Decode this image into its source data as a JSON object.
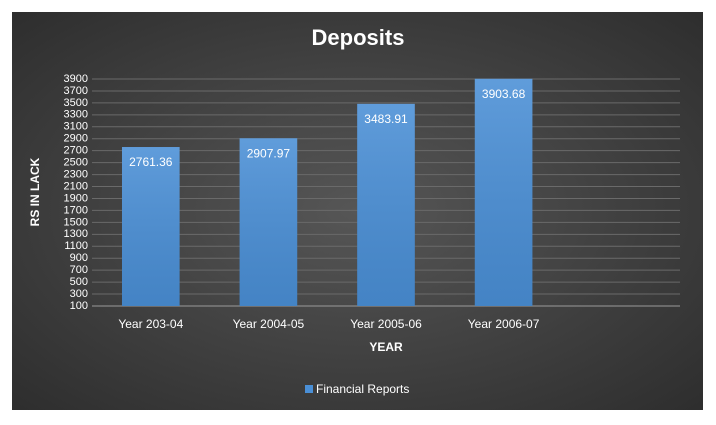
{
  "chart_data": {
    "type": "bar",
    "title": "Deposits",
    "x_label": "YEAR",
    "y_label": "RS IN LACK",
    "categories": [
      "Year 203-04",
      "Year 2004-05",
      "Year 2005-06",
      "Year 2006-07",
      null
    ],
    "series": [
      {
        "name": "Financial Reports",
        "color": "#4a8fd6",
        "values": [
          2761.36,
          2907.97,
          3483.91,
          3903.68,
          null
        ]
      }
    ],
    "ylim": [
      100,
      3900
    ],
    "yticks": [
      100,
      300,
      500,
      700,
      900,
      1100,
      1300,
      1500,
      1700,
      1900,
      2100,
      2300,
      2500,
      2700,
      2900,
      3100,
      3300,
      3500,
      3700,
      3900
    ],
    "grid": true,
    "legend": "bottom"
  }
}
